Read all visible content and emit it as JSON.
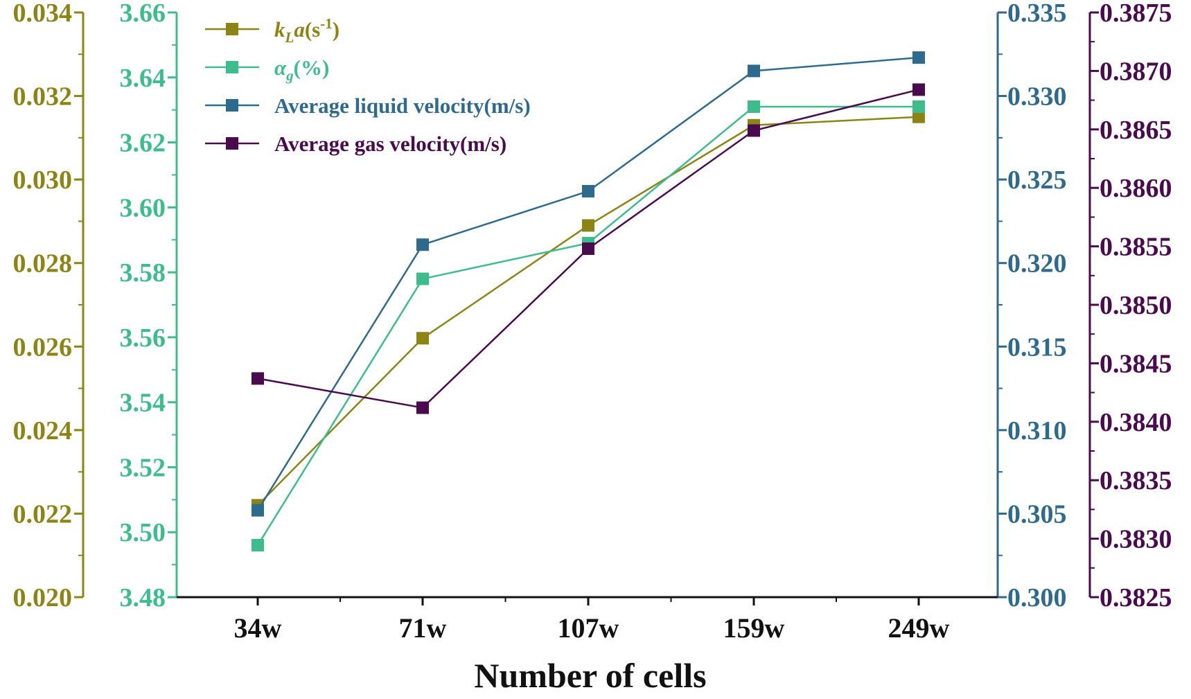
{
  "chart_data": {
    "type": "line",
    "xlabel": "Number of cells",
    "categories": [
      "34w",
      "71w",
      "107w",
      "159w",
      "249w"
    ],
    "legend_position": "top-left",
    "series": [
      {
        "name": "kLa(s-1)",
        "legend_main": "k",
        "legend_sub": "L",
        "legend_main2": "a",
        "legend_rest": "(s",
        "legend_sup": "-1",
        "legend_end": ")",
        "color": "#8c8414",
        "axis": "kla",
        "values": [
          0.0222,
          0.0262,
          0.0289,
          0.0313,
          0.0315
        ]
      },
      {
        "name": "αg(%)",
        "legend_main": "α",
        "legend_sub": "g",
        "legend_rest": "(%)",
        "color": "#3dbd8c",
        "axis": "alpha",
        "values": [
          3.496,
          3.578,
          3.589,
          3.631,
          3.631
        ]
      },
      {
        "name": "Average liquid velocity(m/s)",
        "legend_label": "Average liquid velocity(m/s)",
        "color": "#2e6a8e",
        "axis": "liquid",
        "values": [
          0.3052,
          0.3211,
          0.3243,
          0.3315,
          0.3323
        ]
      },
      {
        "name": "Average gas velocity(m/s)",
        "legend_label": "Average gas velocity(m/s)",
        "color": "#4a0b4e",
        "axis": "gas",
        "values": [
          0.38437,
          0.38412,
          0.38548,
          0.38649,
          0.38684
        ]
      }
    ],
    "axes": [
      {
        "id": "kla",
        "side": "left",
        "color": "#8c8414",
        "ylim": [
          0.02,
          0.034
        ],
        "ticks": [
          "0.020",
          "0.022",
          "0.024",
          "0.026",
          "0.028",
          "0.030",
          "0.032",
          "0.034"
        ]
      },
      {
        "id": "alpha",
        "side": "left",
        "color": "#3dbd8c",
        "ylim": [
          3.48,
          3.66
        ],
        "ticks": [
          "3.48",
          "3.50",
          "3.52",
          "3.54",
          "3.56",
          "3.58",
          "3.60",
          "3.62",
          "3.64",
          "3.66"
        ]
      },
      {
        "id": "liquid",
        "side": "right",
        "color": "#2e6a8e",
        "ylim": [
          0.3,
          0.335
        ],
        "ticks": [
          "0.300",
          "0.305",
          "0.310",
          "0.315",
          "0.320",
          "0.325",
          "0.330",
          "0.335"
        ]
      },
      {
        "id": "gas",
        "side": "right",
        "color": "#4a0b4e",
        "ylim": [
          0.3825,
          0.3875
        ],
        "ticks": [
          "0.3825",
          "0.3830",
          "0.3835",
          "0.3840",
          "0.3845",
          "0.3850",
          "0.3855",
          "0.3860",
          "0.3865",
          "0.3870",
          "0.3875"
        ]
      }
    ]
  }
}
